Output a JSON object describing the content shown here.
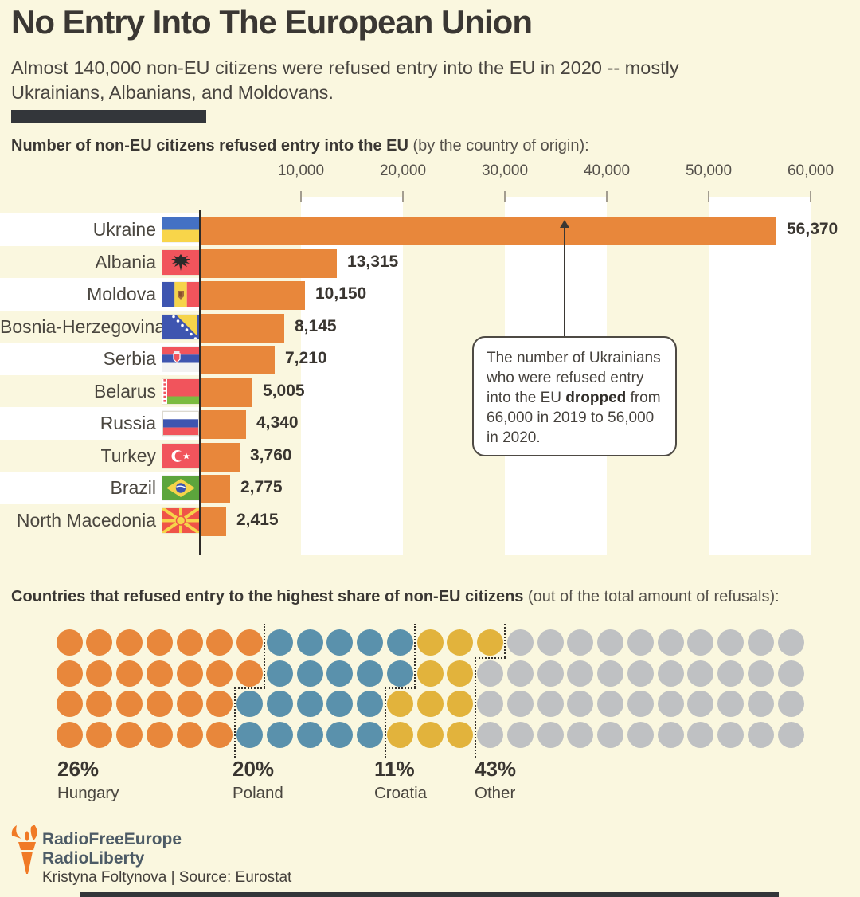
{
  "header": {
    "title": "No Entry Into The European Union",
    "subtitle": "Almost 140,000 non-EU citizens were refused entry into the EU in 2020 -- mostly Ukrainians, Albanians, and Moldovans."
  },
  "bar_section": {
    "heading_bold": "Number of non-EU citizens refused entry into the EU",
    "heading_note": " (by the country of origin):"
  },
  "waffle_section": {
    "heading_bold": "Countries that refused entry to the highest share of non-EU citizens",
    "heading_note": " (out of the total amount of refusals):"
  },
  "annotation": {
    "text_before": "The number of Ukrainians who were refused entry into the EU ",
    "text_bold": "dropped",
    "text_after": " from 66,000 in 2019 to 56,000 in 2020."
  },
  "chart_data": [
    {
      "type": "bar",
      "orientation": "horizontal",
      "title": "Number of non-EU citizens refused entry into the EU (by the country of origin)",
      "categories": [
        "Ukraine",
        "Albania",
        "Moldova",
        "Bosnia-Herzegovina",
        "Serbia",
        "Belarus",
        "Russia",
        "Turkey",
        "Brazil",
        "North Macedonia"
      ],
      "values": [
        56370,
        13315,
        10150,
        8145,
        7210,
        5005,
        4340,
        3760,
        2775,
        2415
      ],
      "value_labels": [
        "56,370",
        "13,315",
        "10,150",
        "8,145",
        "7,210",
        "5,005",
        "4,340",
        "3,760",
        "2,775",
        "2,415"
      ],
      "flags": [
        "ukraine",
        "albania",
        "moldova",
        "bosnia",
        "serbia",
        "belarus",
        "russia",
        "turkey",
        "brazil",
        "north-macedonia"
      ],
      "x_ticks": [
        "10,000",
        "20,000",
        "30,000",
        "40,000",
        "50,000",
        "60,000"
      ],
      "x_tick_values": [
        10000,
        20000,
        30000,
        40000,
        50000,
        60000
      ],
      "xlim": [
        0,
        65000
      ],
      "bar_color": "#E8873B",
      "grid": "white vertical bands between alternate ticks"
    },
    {
      "type": "waffle",
      "title": "Countries that refused entry to the highest share of non-EU citizens (out of the total amount of refusals)",
      "rows": 4,
      "cols": 25,
      "total_dots": 100,
      "series": [
        {
          "name": "Hungary",
          "pct": 26,
          "label": "26%",
          "color": "#E8873B"
        },
        {
          "name": "Poland",
          "pct": 20,
          "label": "20%",
          "color": "#5A91AC"
        },
        {
          "name": "Croatia",
          "pct": 11,
          "label": "11%",
          "color": "#E2B33C"
        },
        {
          "name": "Other",
          "pct": 43,
          "label": "43%",
          "color": "#BFC1C3"
        }
      ],
      "row_counts": [
        [
          7,
          5,
          3,
          10
        ],
        [
          7,
          5,
          2,
          11
        ],
        [
          6,
          5,
          3,
          11
        ],
        [
          6,
          5,
          3,
          11
        ]
      ]
    }
  ],
  "footer": {
    "logo_line1": "RadioFreeEurope",
    "logo_line2": "RadioLiberty",
    "credit": "Kristyna Foltynova | Source: Eurostat"
  },
  "colors": {
    "background": "#FAF7DF",
    "band_white": "#FFFFFF",
    "bar_orange": "#E8873B",
    "text_dark": "#3A3733",
    "divider_dark": "#33363A",
    "logo_orange": "#F07A26",
    "logo_text": "#4D5B66"
  }
}
